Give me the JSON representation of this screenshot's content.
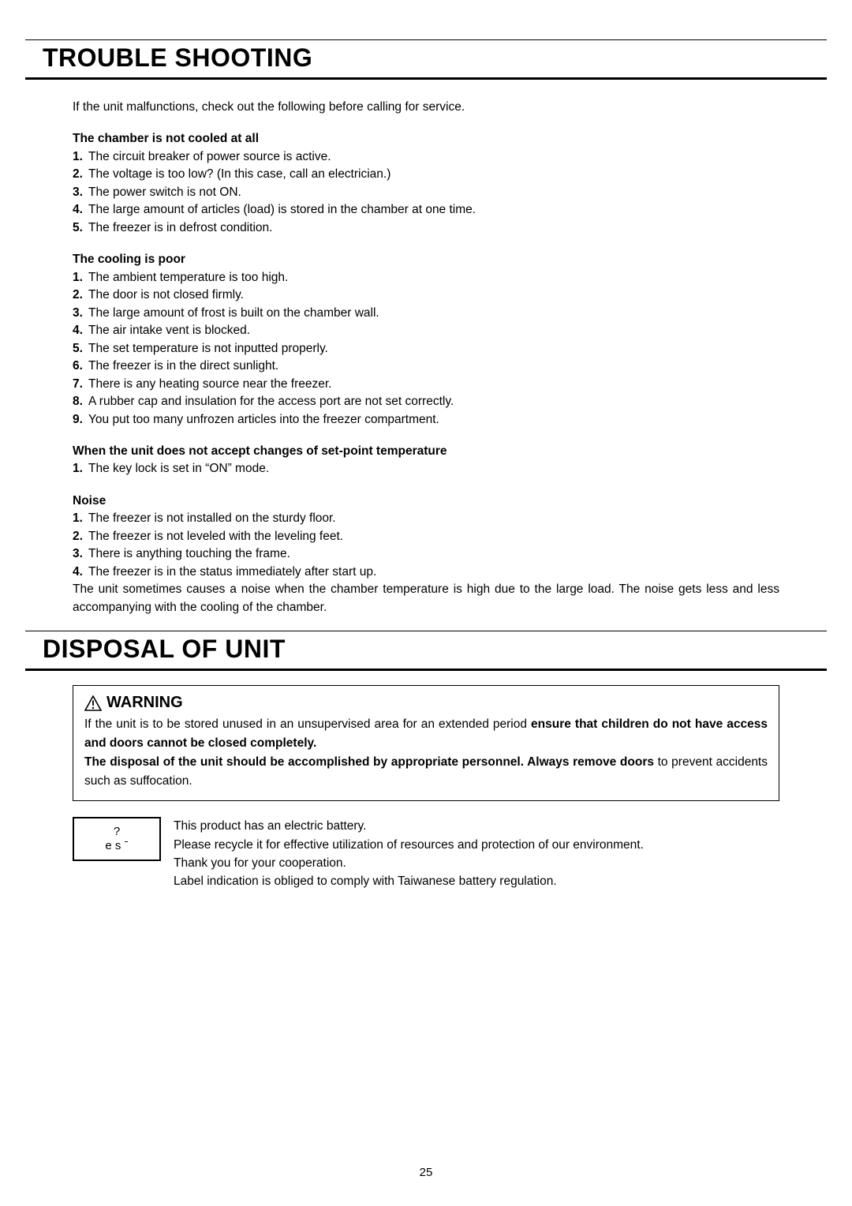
{
  "colors": {
    "text": "#000000",
    "background": "#ffffff",
    "rule": "#000000"
  },
  "typography": {
    "body_fontsize_pt": 12,
    "heading_fontsize_pt": 24,
    "warning_head_fontsize_pt": 15,
    "font_family": "Arial"
  },
  "page_number": "25",
  "sections": {
    "troubleshoot": {
      "title": "TROUBLE SHOOTING",
      "intro": "If the unit malfunctions, check out the following before calling for service.",
      "blocks": [
        {
          "heading": "The chamber is not cooled at all",
          "items": [
            "The circuit breaker of power source is active.",
            "The voltage is too low? (In this case, call an electrician.)",
            "The power switch is not ON.",
            "The large amount of articles (load) is stored in the chamber at one time.",
            "The freezer is in defrost condition."
          ]
        },
        {
          "heading": "The cooling is poor",
          "items": [
            "The ambient temperature is too high.",
            "The door is not closed firmly.",
            "The large amount of frost is built on the chamber wall.",
            "The air intake vent is blocked.",
            "The set temperature is not inputted properly.",
            "The freezer is in the direct sunlight.",
            "There is any heating source near the freezer.",
            "A rubber cap and insulation for the access port are not set correctly.",
            "You put too many unfrozen articles into the freezer compartment."
          ]
        },
        {
          "heading": "When the unit does not accept changes of set-point temperature",
          "items": [
            "The key lock is set in “ON” mode."
          ]
        },
        {
          "heading": "Noise",
          "items": [
            "The freezer is not installed on the sturdy floor.",
            "The freezer is not leveled with the leveling feet.",
            "There is anything touching the frame.",
            "The freezer is in the status immediately after start up."
          ],
          "trailing": "The unit sometimes causes a noise when the chamber temperature is high due to the large load.  The noise gets less and less accompanying with the cooling of the chamber."
        }
      ]
    },
    "disposal": {
      "title": "DISPOSAL OF UNIT",
      "warning": {
        "head": "WARNING",
        "text_pre": "If the unit is to be stored unused in an unsupervised area for an extended period ",
        "bold1": "ensure that children do not have access and doors cannot be closed completely.",
        "bold2": "The disposal of the unit should be accomplished by appropriate personnel.  Always remove doors",
        "text_post": " to prevent accidents such as suffocation."
      },
      "battery": {
        "label_l1": "?",
        "label_l2": "e s ˉ",
        "lines": [
          "This product has an electric battery.",
          "Please recycle it for effective utilization of resources and protection of our environment.",
          "Thank you for your cooperation.",
          "Label indication is obliged to comply with Taiwanese battery regulation."
        ]
      }
    }
  }
}
